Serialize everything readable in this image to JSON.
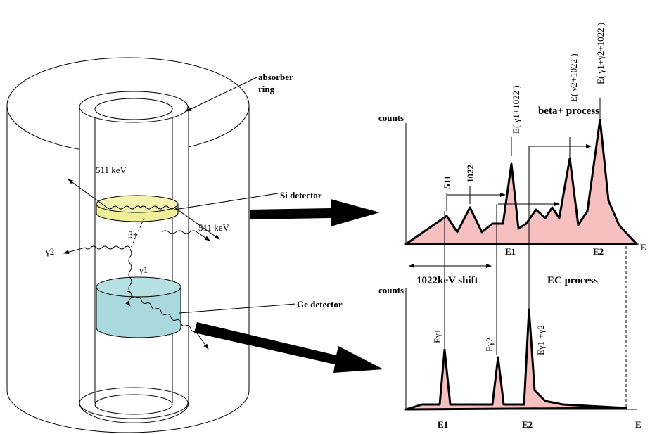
{
  "left": {
    "absorber_label": [
      "absorber",
      "ring"
    ],
    "photon_labels": [
      "511 keV",
      "511 keV"
    ],
    "si_label": "Si detector",
    "ge_label": "Ge detector",
    "beta": "β+",
    "gamma2": "γ2",
    "gamma1": "γ1"
  },
  "top_spectrum": {
    "y_label": "counts",
    "peaks": [
      "511",
      "1022",
      "E( γ1+1022 )",
      "E( γ2+1022 )",
      "E( γ1+γ2+1022 )"
    ],
    "title": "beta+ process",
    "x_labels": [
      "E1",
      "E2"
    ],
    "x_axis": "E"
  },
  "bottom_spectrum": {
    "y_label": "counts",
    "shift": "1022keV shift",
    "title": "EC process",
    "peaks": [
      "Eγ1",
      "Eγ2",
      "Eγ1 +γ2"
    ],
    "x_labels": [
      "E1",
      "E2"
    ],
    "x_axis": "E"
  }
}
